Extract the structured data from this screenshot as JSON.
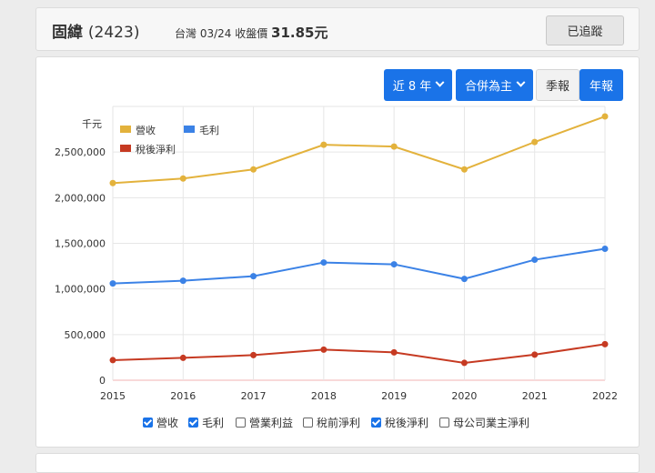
{
  "header": {
    "name": "固緯",
    "code": "(2423)",
    "market_date": "台灣 03/24 收盤價",
    "price": "31.85元",
    "track_label": "已追蹤"
  },
  "controls": {
    "period_label": "近 8 年",
    "basis_label": "合併為主",
    "quarterly_label": "季報",
    "annual_label": "年報"
  },
  "colors": {
    "revenue": "#e3b23c",
    "gross": "#3b82e6",
    "net": "#c63a22",
    "primary": "#1a73e8"
  },
  "chart_data": {
    "type": "line",
    "ylabel": "千元",
    "x": [
      "2015",
      "2016",
      "2017",
      "2018",
      "2019",
      "2020",
      "2021",
      "2022"
    ],
    "ylim": [
      0,
      3000000
    ],
    "yticks": [
      "0",
      "500,000",
      "1,000,000",
      "1,500,000",
      "2,000,000",
      "2,500,000"
    ],
    "ytick_values": [
      0,
      500000,
      1000000,
      1500000,
      2000000,
      2500000
    ],
    "grid": true,
    "legend_placement": "top-left",
    "series": [
      {
        "name": "營收",
        "color": "#e3b23c",
        "values": [
          2160000,
          2210000,
          2310000,
          2580000,
          2560000,
          2310000,
          2610000,
          2890000
        ]
      },
      {
        "name": "毛利",
        "color": "#3b82e6",
        "values": [
          1060000,
          1090000,
          1140000,
          1290000,
          1270000,
          1110000,
          1320000,
          1440000
        ]
      },
      {
        "name": "稅後淨利",
        "color": "#c63a22",
        "values": [
          220000,
          245000,
          275000,
          335000,
          305000,
          190000,
          280000,
          395000
        ]
      }
    ]
  },
  "series_toggles": [
    {
      "label": "營收",
      "checked": true
    },
    {
      "label": "毛利",
      "checked": true
    },
    {
      "label": "營業利益",
      "checked": false
    },
    {
      "label": "稅前淨利",
      "checked": false
    },
    {
      "label": "稅後淨利",
      "checked": true
    },
    {
      "label": "母公司業主淨利",
      "checked": false
    }
  ]
}
